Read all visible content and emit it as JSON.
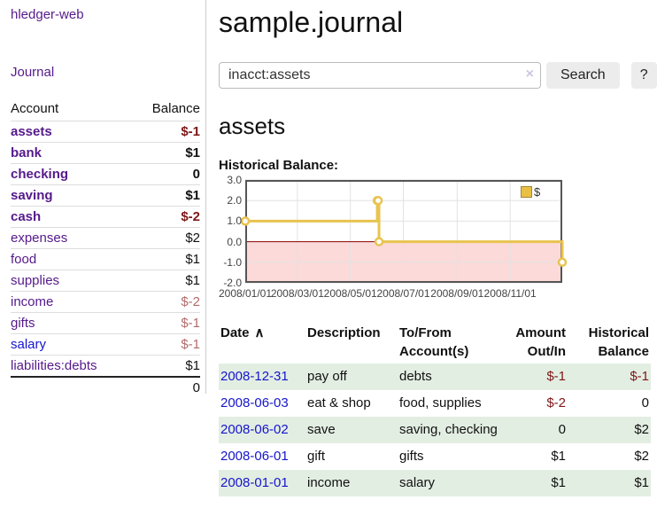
{
  "app": {
    "brand": "hledger-web",
    "nav_journal": "Journal"
  },
  "colors": {
    "link-purple": "#551a8b",
    "link-blue": "#1515cc",
    "neg-dark": "#7d1717",
    "neg-light": "#b36b6b",
    "row-green": "#e3eee3",
    "legend-fill": "#e9c043"
  },
  "sidebar": {
    "header": {
      "account": "Account",
      "balance": "Balance"
    },
    "accounts": [
      {
        "name": "assets",
        "balance": "$-1",
        "depth": 1,
        "bold": true,
        "neg": true,
        "blue": false
      },
      {
        "name": "bank",
        "balance": "$1",
        "depth": 2,
        "bold": true,
        "neg": false,
        "blue": false
      },
      {
        "name": "checking",
        "balance": "0",
        "depth": 3,
        "bold": true,
        "neg": false,
        "blue": false
      },
      {
        "name": "saving",
        "balance": "$1",
        "depth": 3,
        "bold": true,
        "neg": false,
        "blue": false
      },
      {
        "name": "cash",
        "balance": "$-2",
        "depth": 2,
        "bold": true,
        "neg": true,
        "blue": false
      },
      {
        "name": "expenses",
        "balance": "$2",
        "depth": 1,
        "bold": false,
        "neg": false,
        "blue": false
      },
      {
        "name": "food",
        "balance": "$1",
        "depth": 2,
        "bold": false,
        "neg": false,
        "blue": false
      },
      {
        "name": "supplies",
        "balance": "$1",
        "depth": 2,
        "bold": false,
        "neg": false,
        "blue": false
      },
      {
        "name": "income",
        "balance": "$-2",
        "depth": 1,
        "bold": false,
        "neg": true,
        "blue": false
      },
      {
        "name": "gifts",
        "balance": "$-1",
        "depth": 2,
        "bold": false,
        "neg": true,
        "blue": false
      },
      {
        "name": "salary",
        "balance": "$-1",
        "depth": 2,
        "bold": false,
        "neg": true,
        "blue": true
      },
      {
        "name": "liabilities:debts",
        "balance": "$1",
        "depth": 1,
        "bold": false,
        "neg": false,
        "blue": false
      }
    ],
    "total": "0"
  },
  "header": {
    "title": "sample.journal"
  },
  "search": {
    "value": "inacct:assets",
    "clear_icon": "×",
    "button": "Search",
    "help_button": "?"
  },
  "account_page": {
    "heading": "assets",
    "chart_label": "Historical Balance:"
  },
  "chart_data": {
    "type": "line",
    "title": "Historical Balance",
    "step": true,
    "legend": {
      "label": "$"
    },
    "x_start": "2008-01-01",
    "x_end": "2008-12-31",
    "x_ticks": [
      {
        "label": "2008/01/01",
        "date": "2008-01-01"
      },
      {
        "label": "2008/03/01",
        "date": "2008-03-01"
      },
      {
        "label": "2008/05/01",
        "date": "2008-05-01"
      },
      {
        "label": "2008/07/01",
        "date": "2008-07-01"
      },
      {
        "label": "2008/09/01",
        "date": "2008-09-01"
      },
      {
        "label": "2008/11/01",
        "date": "2008-11-01"
      }
    ],
    "y_ticks": [
      "3.0",
      "2.0",
      "1.0",
      "0.0",
      "-1.0",
      "-2.0"
    ],
    "ylim": [
      -2,
      3
    ],
    "points": [
      {
        "date": "2008-01-01",
        "value": 1
      },
      {
        "date": "2008-06-01",
        "value": 2
      },
      {
        "date": "2008-06-02",
        "value": 2
      },
      {
        "date": "2008-06-03",
        "value": 0
      },
      {
        "date": "2008-12-31",
        "value": -1
      }
    ],
    "colors": {
      "line": "#e8c44f",
      "marker_fill": "#ffffff",
      "negative_region": "#fcdada",
      "zero_line": "#8b0000",
      "grid": "#e2e2e2",
      "border": "#555555"
    }
  },
  "register": {
    "sort_icon": "∧",
    "headers": [
      "Date",
      "Description",
      "To/From Account(s)",
      "Amount Out/In",
      "Historical Balance"
    ],
    "rows": [
      {
        "date": "2008-12-31",
        "description": "pay off",
        "accounts": "debts",
        "amount": "$-1",
        "amount_neg": true,
        "balance": "$-1",
        "balance_neg": true,
        "shade": true
      },
      {
        "date": "2008-06-03",
        "description": "eat & shop",
        "accounts": "food, supplies",
        "amount": "$-2",
        "amount_neg": true,
        "balance": "0",
        "balance_neg": false,
        "shade": false
      },
      {
        "date": "2008-06-02",
        "description": "save",
        "accounts": "saving, checking",
        "amount": "0",
        "amount_neg": false,
        "balance": "$2",
        "balance_neg": false,
        "shade": true
      },
      {
        "date": "2008-06-01",
        "description": "gift",
        "accounts": "gifts",
        "amount": "$1",
        "amount_neg": false,
        "balance": "$2",
        "balance_neg": false,
        "shade": false
      },
      {
        "date": "2008-01-01",
        "description": "income",
        "accounts": "salary",
        "amount": "$1",
        "amount_neg": false,
        "balance": "$1",
        "balance_neg": false,
        "shade": true
      }
    ]
  }
}
